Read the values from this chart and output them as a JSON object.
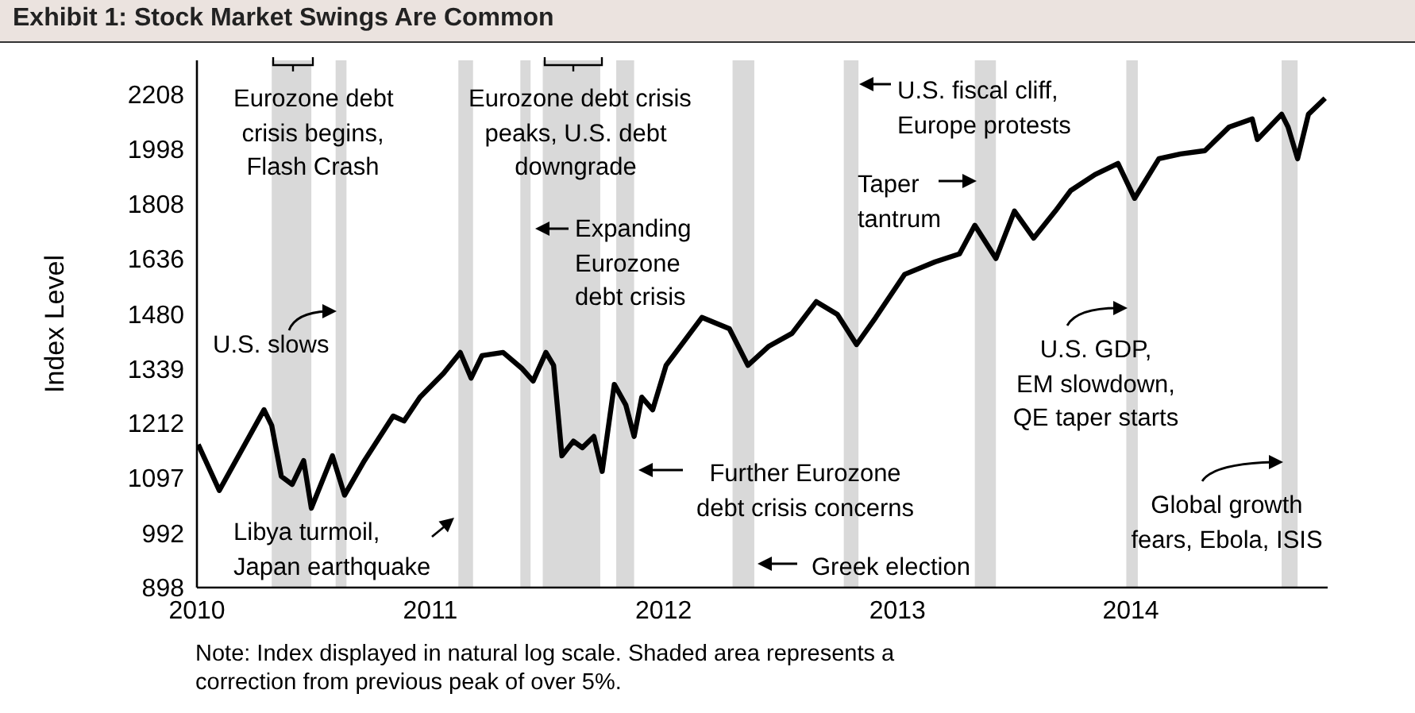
{
  "chart_data": {
    "type": "line",
    "title": "Exhibit 1: Stock Market Swings Are Common",
    "ylabel": "Index Level",
    "x": [
      "2010-01-03",
      "2010-02-05",
      "2010-04-16",
      "2010-04-28",
      "2010-05-13",
      "2010-05-30",
      "2010-06-17",
      "2010-06-29",
      "2010-08-01",
      "2010-08-20",
      "2010-09-20",
      "2010-11-04",
      "2010-11-21",
      "2010-12-16",
      "2011-01-22",
      "2011-02-17",
      "2011-03-06",
      "2011-03-23",
      "2011-04-25",
      "2011-05-24",
      "2011-06-11",
      "2011-07-01",
      "2011-07-13",
      "2011-07-26",
      "2011-08-13",
      "2011-08-27",
      "2011-09-14",
      "2011-09-27",
      "2011-10-16",
      "2011-11-03",
      "2011-11-16",
      "2011-11-28",
      "2011-12-15",
      "2012-01-05",
      "2012-03-01",
      "2012-04-13",
      "2012-05-12",
      "2012-06-14",
      "2012-07-20",
      "2012-08-27",
      "2012-09-29",
      "2012-10-29",
      "2012-11-28",
      "2013-01-12",
      "2013-03-01",
      "2013-04-08",
      "2013-05-02",
      "2013-06-04",
      "2013-07-03",
      "2013-08-02",
      "2013-09-05",
      "2013-09-29",
      "2013-11-06",
      "2013-12-12",
      "2014-01-07",
      "2014-02-14",
      "2014-03-20",
      "2014-04-27",
      "2014-06-04",
      "2014-07-10",
      "2014-07-18",
      "2014-08-25",
      "2014-09-04",
      "2014-09-19",
      "2014-10-06",
      "2014-11-01"
    ],
    "series": [
      {
        "color": "#000000",
        "values": [
          1166,
          1072,
          1242,
          1207,
          1100,
          1084,
          1132,
          1038,
          1142,
          1063,
          1132,
          1228,
          1217,
          1271,
          1328,
          1379,
          1316,
          1371,
          1379,
          1340,
          1309,
          1379,
          1347,
          1142,
          1173,
          1159,
          1183,
          1110,
          1301,
          1253,
          1183,
          1271,
          1242,
          1347,
          1470,
          1440,
          1347,
          1395,
          1428,
          1513,
          1478,
          1399,
          1470,
          1590,
          1627,
          1651,
          1739,
          1637,
          1785,
          1699,
          1785,
          1853,
          1908,
          1947,
          1827,
          1964,
          1981,
          1993,
          2081,
          2112,
          2034,
          2130,
          2081,
          1964,
          2130,
          2193
        ]
      }
    ],
    "xlim": [
      "2010-01-01",
      "2014-11-05"
    ],
    "xticks": [
      "2010",
      "2011",
      "2012",
      "2013",
      "2014"
    ],
    "ylim": [
      898,
      2350
    ],
    "yticks": [
      898,
      992,
      1097,
      1212,
      1339,
      1480,
      1636,
      1808,
      1998,
      2208
    ],
    "log": true,
    "marker": "none",
    "line_style": "solid",
    "bands": [
      {
        "axis": "x",
        "from": "2010-04-28",
        "to": "2010-06-29",
        "color": "#d9d9d9"
      },
      {
        "axis": "x",
        "from": "2010-08-06",
        "to": "2010-08-23",
        "color": "#d9d9d9"
      },
      {
        "axis": "x",
        "from": "2011-02-14",
        "to": "2011-03-09",
        "color": "#d9d9d9"
      },
      {
        "axis": "x",
        "from": "2011-05-22",
        "to": "2011-06-07",
        "color": "#d9d9d9"
      },
      {
        "axis": "x",
        "from": "2011-06-26",
        "to": "2011-09-24",
        "color": "#d9d9d9"
      },
      {
        "axis": "x",
        "from": "2011-10-19",
        "to": "2011-11-16",
        "color": "#d9d9d9"
      },
      {
        "axis": "x",
        "from": "2012-04-18",
        "to": "2012-05-22",
        "color": "#d9d9d9"
      },
      {
        "axis": "x",
        "from": "2012-10-09",
        "to": "2012-11-01",
        "color": "#d9d9d9"
      },
      {
        "axis": "x",
        "from": "2013-05-02",
        "to": "2013-06-04",
        "color": "#d9d9d9"
      },
      {
        "axis": "x",
        "from": "2013-12-25",
        "to": "2014-01-12",
        "color": "#d9d9d9"
      },
      {
        "axis": "x",
        "from": "2014-08-25",
        "to": "2014-09-19",
        "color": "#d9d9d9"
      }
    ],
    "annotations": [
      "Eurozone debt\ncrisis begins,\nFlash Crash",
      "Eurozone debt crisis\npeaks, U.S. debt\ndowngrade",
      "Expanding\nEurozone\ndebt crisis",
      "U.S. slows",
      "U.S. fiscal cliff,\nEurope protests",
      "Taper\ntantrum",
      "U.S. GDP,\nEM slowdown,\nQE taper starts",
      "Libya turmoil,\nJapan earthquake",
      "Further Eurozone\ndebt crisis concerns",
      "Greek election",
      "Global growth\nfears, Ebola, ISIS",
      "Note: Index displayed in natural log scale. Shaded area represents a\ncorrection from previous peak of over 5%."
    ]
  }
}
